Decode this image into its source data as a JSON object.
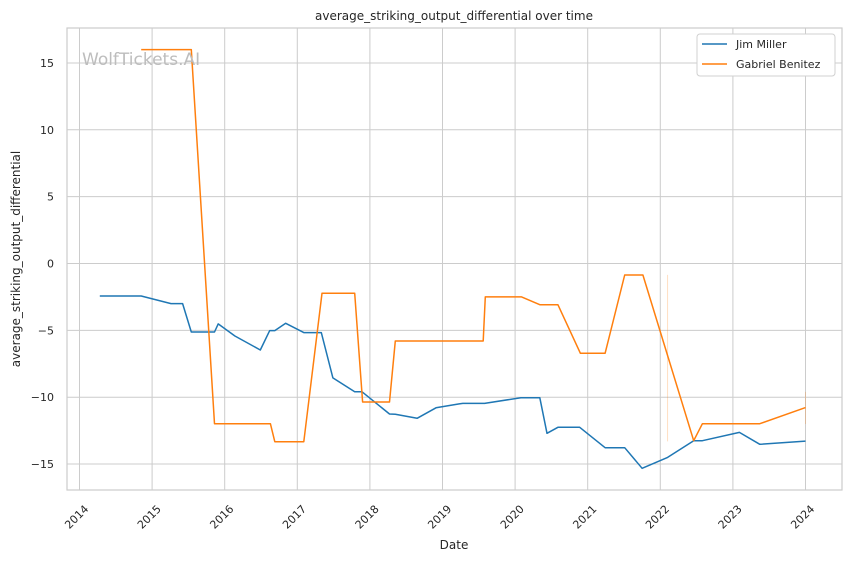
{
  "chart_data": {
    "type": "line",
    "title": "average_striking_output_differential over time",
    "xlabel": "Date",
    "ylabel": "average_striking_output_differential",
    "watermark": "WolfTickets.AI",
    "xlim": [
      2013.82,
      2024.5
    ],
    "ylim": [
      -17,
      17.5
    ],
    "xticks": [
      2014,
      2015,
      2016,
      2017,
      2018,
      2019,
      2020,
      2021,
      2022,
      2023,
      2024
    ],
    "xtick_labels": [
      "2014",
      "2015",
      "2016",
      "2017",
      "2018",
      "2019",
      "2020",
      "2021",
      "2022",
      "2023",
      "2024"
    ],
    "yticks": [
      -15,
      -10,
      -5,
      0,
      5,
      10,
      15
    ],
    "ytick_labels": [
      "−15",
      "−10",
      "−5",
      "0",
      "5",
      "10",
      "15"
    ],
    "grid": true,
    "legend_position": "top-right",
    "series": [
      {
        "name": "Jim Miller",
        "color": "#1f77b4",
        "x": [
          2014.28,
          2014.85,
          2015.26,
          2015.42,
          2015.54,
          2015.86,
          2015.91,
          2016.14,
          2016.49,
          2016.62,
          2016.69,
          2016.84,
          2017.09,
          2017.33,
          2017.49,
          2017.79,
          2017.89,
          2018.27,
          2018.35,
          2018.65,
          2018.91,
          2019.23,
          2019.28,
          2019.58,
          2020.08,
          2020.34,
          2020.44,
          2020.59,
          2020.89,
          2021.24,
          2021.51,
          2021.75,
          2022.1,
          2022.46,
          2022.58,
          2023.09,
          2023.37,
          2024.0
        ],
        "y": [
          -2.43,
          -2.43,
          -3.0,
          -3.0,
          -5.12,
          -5.12,
          -4.52,
          -5.42,
          -6.47,
          -5.02,
          -5.02,
          -4.47,
          -5.17,
          -5.17,
          -8.56,
          -9.59,
          -9.59,
          -11.26,
          -11.28,
          -11.58,
          -10.79,
          -10.5,
          -10.46,
          -10.46,
          -10.04,
          -10.04,
          -12.7,
          -12.25,
          -12.25,
          -13.78,
          -13.78,
          -15.32,
          -14.5,
          -13.25,
          -13.25,
          -12.63,
          -13.52,
          -13.28
        ]
      },
      {
        "name": "Gabriel Benitez",
        "color": "#ff7f0e",
        "x": [
          2014.85,
          2015.54,
          2015.86,
          2016.63,
          2016.69,
          2017.09,
          2017.34,
          2017.79,
          2017.9,
          2018.27,
          2018.35,
          2019.56,
          2019.59,
          2020.09,
          2020.34,
          2020.59,
          2020.9,
          2021.24,
          2021.51,
          2021.76,
          2022.46,
          2022.58,
          2023.37,
          2024.0
        ],
        "y": [
          16.0,
          16.0,
          -11.98,
          -11.98,
          -13.33,
          -13.33,
          -2.23,
          -2.23,
          -10.36,
          -10.36,
          -5.8,
          -5.8,
          -2.5,
          -2.5,
          -3.08,
          -3.08,
          -6.72,
          -6.72,
          -0.86,
          -0.86,
          -13.25,
          -11.98,
          -11.98,
          -10.78
        ],
        "error_bands": [
          {
            "x": 2022.1,
            "low": -13.3,
            "high": -0.85
          },
          {
            "x": 2024.0,
            "low": -12.0,
            "high": -9.6
          }
        ]
      }
    ]
  }
}
